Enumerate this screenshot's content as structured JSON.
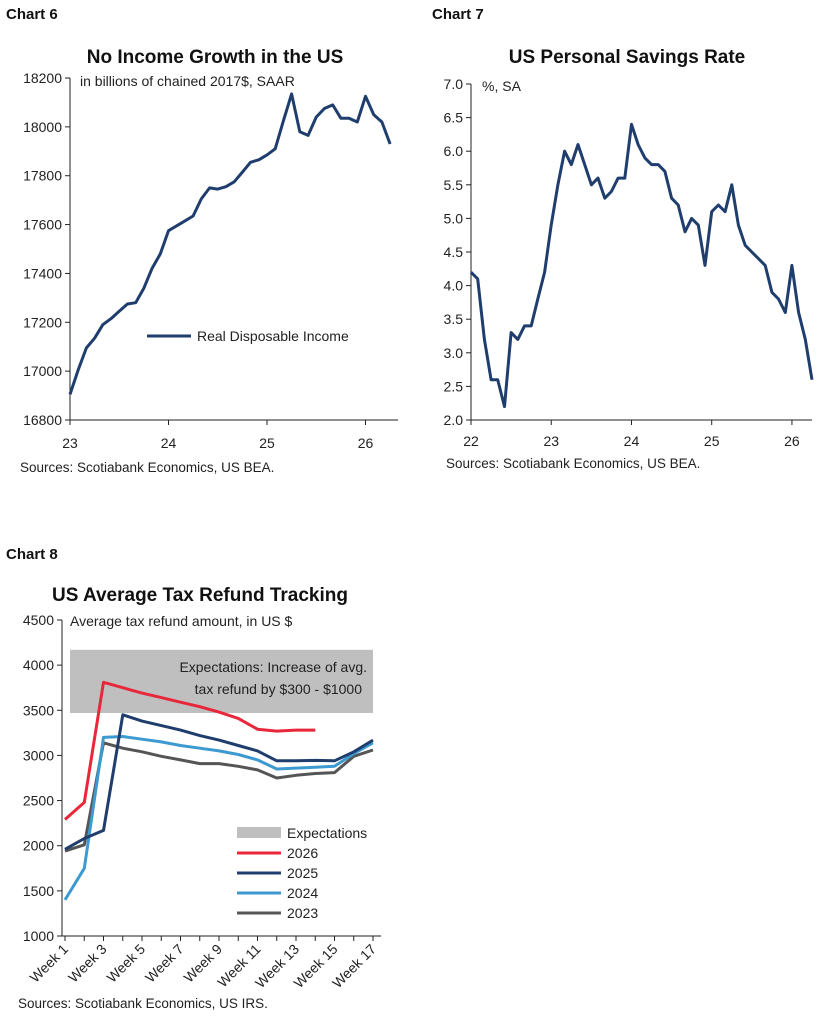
{
  "chart_data": [
    {
      "id": "chart6",
      "label": "Chart 6",
      "type": "line",
      "title": "No Income Growth in the US",
      "subtitle": "in billions of chained 2017$, SAAR",
      "source": "Sources: Scotiabank Economics, US BEA.",
      "xlabel": "",
      "ylabel": "",
      "xlim": [
        23,
        26.33
      ],
      "ylim": [
        16800,
        18200
      ],
      "xticks": [
        23,
        24,
        25,
        26
      ],
      "yticks": [
        16800,
        17000,
        17200,
        17400,
        17600,
        17800,
        18000,
        18200
      ],
      "legend_position": "lower-right",
      "series": [
        {
          "name": "Real Disposable Income",
          "color": "#1f3e6e",
          "x": [
            23.0,
            23.083,
            23.167,
            23.25,
            23.333,
            23.417,
            23.5,
            23.583,
            23.667,
            23.75,
            23.833,
            23.917,
            24.0,
            24.083,
            24.167,
            24.25,
            24.333,
            24.417,
            24.5,
            24.583,
            24.667,
            24.75,
            24.833,
            24.917,
            25.0,
            25.083,
            25.167,
            25.25,
            25.333,
            25.417,
            25.5,
            25.583,
            25.667,
            25.75,
            25.833,
            25.917,
            26.0,
            26.083,
            26.167,
            26.25
          ],
          "values": [
            16905,
            17005,
            17095,
            17135,
            17190,
            17215,
            17245,
            17275,
            17280,
            17340,
            17420,
            17480,
            17575,
            17595,
            17615,
            17635,
            17705,
            17750,
            17745,
            17755,
            17775,
            17815,
            17855,
            17865,
            17885,
            17910,
            18025,
            18135,
            17980,
            17965,
            18040,
            18075,
            18090,
            18035,
            18035,
            18020,
            18125,
            18050,
            18020,
            17930
          ]
        }
      ]
    },
    {
      "id": "chart7",
      "label": "Chart 7",
      "type": "line",
      "title": "US Personal Savings Rate",
      "subtitle": "%, SA",
      "source": "Sources: Scotiabank Economics, US BEA.",
      "xlabel": "",
      "ylabel": "",
      "xlim": [
        22,
        26.25
      ],
      "ylim": [
        2.0,
        7.0
      ],
      "xticks": [
        22,
        23,
        24,
        25,
        26
      ],
      "yticks": [
        "2.0",
        "2.5",
        "3.0",
        "3.5",
        "4.0",
        "4.5",
        "5.0",
        "5.5",
        "6.0",
        "6.5",
        "7.0"
      ],
      "series": [
        {
          "color": "#1f3e6e",
          "x": [
            22.0,
            22.083,
            22.167,
            22.25,
            22.333,
            22.417,
            22.5,
            22.583,
            22.667,
            22.75,
            22.833,
            22.917,
            23.0,
            23.083,
            23.167,
            23.25,
            23.333,
            23.417,
            23.5,
            23.583,
            23.667,
            23.75,
            23.833,
            23.917,
            24.0,
            24.083,
            24.167,
            24.25,
            24.333,
            24.417,
            24.5,
            24.583,
            24.667,
            24.75,
            24.833,
            24.917,
            25.0,
            25.083,
            25.167,
            25.25,
            25.333,
            25.417,
            25.5,
            25.583,
            25.667,
            25.75,
            25.833,
            25.917,
            26.0,
            26.083,
            26.167,
            26.25
          ],
          "values": [
            4.2,
            4.1,
            3.2,
            2.6,
            2.6,
            2.2,
            3.3,
            3.2,
            3.4,
            3.4,
            3.8,
            4.2,
            4.9,
            5.5,
            6.0,
            5.8,
            6.1,
            5.8,
            5.5,
            5.6,
            5.3,
            5.4,
            5.6,
            5.6,
            6.4,
            6.1,
            5.9,
            5.8,
            5.8,
            5.7,
            5.3,
            5.2,
            4.8,
            5.0,
            4.9,
            4.3,
            5.1,
            5.2,
            5.1,
            5.5,
            4.9,
            4.6,
            4.5,
            4.4,
            4.3,
            3.9,
            3.8,
            3.6,
            4.3,
            3.6,
            3.2,
            2.6
          ]
        }
      ]
    },
    {
      "id": "chart8",
      "label": "Chart 8",
      "type": "line",
      "title": "US Average Tax Refund Tracking",
      "subtitle": "Average tax refund amount, in US $",
      "source": "Sources: Scotiabank Economics, US IRS.",
      "xlabel": "",
      "ylabel": "",
      "ylim": [
        1000,
        4500
      ],
      "yticks": [
        1000,
        1500,
        2000,
        2500,
        3000,
        3500,
        4000,
        4500
      ],
      "categories": [
        "Week 1",
        "Week 2",
        "Week 3",
        "Week 4",
        "Week 5",
        "Week 6",
        "Week 7",
        "Week 8",
        "Week 9",
        "Week 10",
        "Week 11",
        "Week 12",
        "Week 13",
        "Week 14",
        "Week 15",
        "Week 16",
        "Week 17"
      ],
      "tick_labels": [
        "Week 1",
        "Week 3",
        "Week 5",
        "Week 7",
        "Week 9",
        "Week 11",
        "Week 13",
        "Week 15",
        "Week 17"
      ],
      "expectation_band": {
        "name": "Expectations",
        "low": 3470,
        "high": 4170,
        "color": "#bfbfbf",
        "label_line1": "Expectations: Increase of avg.",
        "label_line2": "tax refund by $300 - $1000"
      },
      "legend_position": "lower-right",
      "series": [
        {
          "name": "2026",
          "color": "#e8283a",
          "values": [
            2290,
            2480,
            3810,
            3750,
            3690,
            3640,
            3590,
            3540,
            3480,
            3410,
            3290,
            3270,
            3280,
            3280,
            null,
            null,
            null
          ]
        },
        {
          "name": "2025",
          "color": "#1f3e6e",
          "values": [
            1960,
            2080,
            2170,
            3450,
            3380,
            3330,
            3280,
            3220,
            3170,
            3110,
            3050,
            2940,
            2940,
            2945,
            2940,
            3040,
            3170
          ]
        },
        {
          "name": "2024",
          "color": "#3d9ad1",
          "values": [
            1400,
            1750,
            3200,
            3210,
            3180,
            3150,
            3110,
            3080,
            3050,
            3010,
            2950,
            2850,
            2860,
            2870,
            2880,
            3020,
            3140
          ]
        },
        {
          "name": "2023",
          "color": "#555555",
          "values": [
            1940,
            2010,
            3140,
            3080,
            3040,
            2990,
            2950,
            2910,
            2910,
            2880,
            2840,
            2750,
            2780,
            2800,
            2810,
            2990,
            3060
          ]
        }
      ]
    }
  ]
}
